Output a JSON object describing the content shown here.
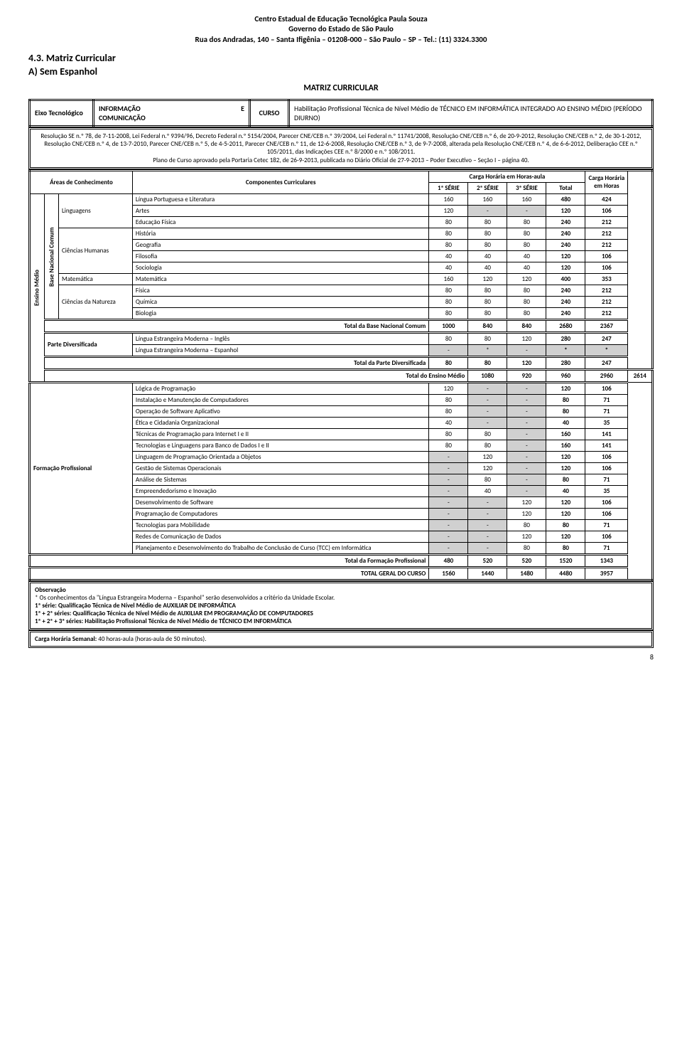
{
  "header": {
    "line1": "Centro Estadual de Educação Tecnológica Paula Souza",
    "line2": "Governo do Estado de São Paulo",
    "line3": "Rua dos Andradas, 140 – Santa Ifigênia – 01208-000 – São Paulo – SP – Tel.: (11) 3324.3300"
  },
  "sec_num": "4.3.  Matriz Curricular",
  "subsec": "A) Sem Espanhol",
  "matriz_title": "MATRIZ CURRICULAR",
  "info": {
    "eixo_lbl": "Eixo Tecnológico",
    "eixo_val_pre": "INFORMAÇÃO",
    "eixo_val_mid": "E",
    "eixo_val_post": "COMUNICAÇÃO",
    "curso_lbl": "CURSO",
    "curso_val": "Habilitação Profissional Técnica de Nível Médio de TÉCNICO EM INFORMÁTICA INTEGRADO AO ENSINO MÉDIO (PERÍODO DIURNO)"
  },
  "legal": "Resolução SE n.º 78, de 7-11-2008, Lei Federal n.º 9394/96, Decreto Federal n.º 5154/2004, Parecer CNE/CEB n.º 39/2004, Lei Federal n.º 11741/2008, Resolução CNE/CEB n.º 6, de 20-9-2012, Resolução CNE/CEB n.º 2, de 30-1-2012, Resolução CNE/CEB n.º 4, de 13-7-2010, Parecer CNE/CEB n.º 5, de 4-5-2011, Parecer CNE/CEB n.º 11, de 12-6-2008, Resolução CNE/CEB n.º 3, de 9-7-2008, alterada pela Resolução CNE/CEB n.º 4, de 6-6-2012, Deliberação CEE n.º 105/2011, das Indicações CEE n.º 8/2000 e n.º 108/2011.",
  "legal2": "Plano de Curso aprovado pela Portaria Cetec 182, de 26-9-2013, publicada no Diário Oficial de 27-9-2013 – Poder Executivo – Seção I – página 40.",
  "th": {
    "areas": "Áreas de Conhecimento",
    "comp": "Componentes Curriculares",
    "carga_ha": "Carga Horária em Horas-aula",
    "carga_h": "Carga Horária em Horas",
    "s1": "1ª SÉRIE",
    "s2": "2ª SÉRIE",
    "s3": "3ª SÉRIE",
    "tot": "Total"
  },
  "rot_em": "Ensino Médio",
  "rot_bnc": "Base Nacional Comum",
  "areas": {
    "ling": "Linguagens",
    "hum": "Ciências Humanas",
    "mat": "Matemática",
    "nat": "Ciências da Natureza",
    "div": "Parte Diversificada",
    "fp": "Formação Profissional"
  },
  "rows_bnc": [
    {
      "c": "Língua Portuguesa e Literatura",
      "v": [
        "160",
        "160",
        "160",
        "480",
        "424"
      ]
    },
    {
      "c": "Artes",
      "v": [
        "120",
        "-",
        "-",
        "120",
        "106"
      ],
      "g": [
        1,
        2
      ]
    },
    {
      "c": "Educação Física",
      "v": [
        "80",
        "80",
        "80",
        "240",
        "212"
      ]
    },
    {
      "c": "História",
      "v": [
        "80",
        "80",
        "80",
        "240",
        "212"
      ]
    },
    {
      "c": "Geografia",
      "v": [
        "80",
        "80",
        "80",
        "240",
        "212"
      ]
    },
    {
      "c": "Filosofia",
      "v": [
        "40",
        "40",
        "40",
        "120",
        "106"
      ]
    },
    {
      "c": "Sociologia",
      "v": [
        "40",
        "40",
        "40",
        "120",
        "106"
      ]
    },
    {
      "c": "Matemática",
      "v": [
        "160",
        "120",
        "120",
        "400",
        "353"
      ]
    },
    {
      "c": "Física",
      "v": [
        "80",
        "80",
        "80",
        "240",
        "212"
      ]
    },
    {
      "c": "Química",
      "v": [
        "80",
        "80",
        "80",
        "240",
        "212"
      ]
    },
    {
      "c": "Biologia",
      "v": [
        "80",
        "80",
        "80",
        "240",
        "212"
      ]
    }
  ],
  "tot_bnc": {
    "lbl": "Total da Base Nacional Comum",
    "v": [
      "1000",
      "840",
      "840",
      "2680",
      "2367"
    ]
  },
  "rows_div": [
    {
      "c": "Língua Estrangeira Moderna – Inglês",
      "v": [
        "80",
        "80",
        "120",
        "280",
        "247"
      ]
    },
    {
      "c": "Língua Estrangeira Moderna – Espanhol",
      "v": [
        "-",
        "*",
        "-",
        "*",
        "*"
      ],
      "g": [
        0,
        1,
        2,
        3,
        4
      ]
    }
  ],
  "tot_div": {
    "lbl": "Total da Parte Diversificada",
    "v": [
      "80",
      "80",
      "120",
      "280",
      "247"
    ]
  },
  "tot_em": {
    "lbl": "Total do Ensino Médio",
    "v": [
      "1080",
      "920",
      "960",
      "2960",
      "2614"
    ]
  },
  "rows_fp": [
    {
      "c": "Lógica de Programação",
      "v": [
        "120",
        "-",
        "-",
        "120",
        "106"
      ],
      "g": [
        1,
        2
      ]
    },
    {
      "c": "Instalação e Manutenção de Computadores",
      "v": [
        "80",
        "-",
        "-",
        "80",
        "71"
      ],
      "g": [
        1,
        2
      ]
    },
    {
      "c": "Operação de Software Aplicativo",
      "v": [
        "80",
        "-",
        "-",
        "80",
        "71"
      ],
      "g": [
        1,
        2
      ]
    },
    {
      "c": "Ética e Cidadania Organizacional",
      "v": [
        "40",
        "-",
        "-",
        "40",
        "35"
      ],
      "g": [
        1,
        2
      ]
    },
    {
      "c": "Técnicas de Programação para Internet I e II",
      "v": [
        "80",
        "80",
        "-",
        "160",
        "141"
      ],
      "g": [
        2
      ]
    },
    {
      "c": "Tecnologias e Linguagens para Banco de Dados I e II",
      "v": [
        "80",
        "80",
        "-",
        "160",
        "141"
      ],
      "g": [
        2
      ]
    },
    {
      "c": "Linguagem de Programação Orientada a Objetos",
      "v": [
        "-",
        "120",
        "-",
        "120",
        "106"
      ],
      "g": [
        0,
        2
      ]
    },
    {
      "c": "Gestão de Sistemas Operacionais",
      "v": [
        "-",
        "120",
        "-",
        "120",
        "106"
      ],
      "g": [
        0,
        2
      ]
    },
    {
      "c": "Análise de Sistemas",
      "v": [
        "-",
        "80",
        "-",
        "80",
        "71"
      ],
      "g": [
        0,
        2
      ]
    },
    {
      "c": "Empreendedorismo e Inovação",
      "v": [
        "-",
        "40",
        "-",
        "40",
        "35"
      ],
      "g": [
        0,
        2
      ]
    },
    {
      "c": "Desenvolvimento de Software",
      "v": [
        "-",
        "-",
        "120",
        "120",
        "106"
      ],
      "g": [
        0,
        1
      ]
    },
    {
      "c": "Programação de Computadores",
      "v": [
        "-",
        "-",
        "120",
        "120",
        "106"
      ],
      "g": [
        0,
        1
      ]
    },
    {
      "c": "Tecnologias para Mobilidade",
      "v": [
        "-",
        "-",
        "80",
        "80",
        "71"
      ],
      "g": [
        0,
        1
      ]
    },
    {
      "c": "Redes de Comunicação de Dados",
      "v": [
        "-",
        "-",
        "120",
        "120",
        "106"
      ],
      "g": [
        0,
        1
      ]
    },
    {
      "c": "Planejamento e Desenvolvimento do Trabalho de Conclusão de Curso (TCC) em Informática",
      "v": [
        "-",
        "-",
        "80",
        "80",
        "71"
      ],
      "g": [
        0,
        1
      ]
    }
  ],
  "tot_fp": {
    "lbl": "Total da Formação Profissional",
    "v": [
      "480",
      "520",
      "520",
      "1520",
      "1343"
    ]
  },
  "tot_geral": {
    "lbl": "TOTAL GERAL DO CURSO",
    "v": [
      "1560",
      "1440",
      "1480",
      "4480",
      "3957"
    ]
  },
  "obs": {
    "title": "Observação",
    "note": "* Os conhecimentos da \"Língua Estrangeira Moderna – Espanhol\" serão desenvolvidos a critério da Unidade Escolar.",
    "q1": "1ª série: Qualificação Técnica de Nível Médio de AUXILIAR DE INFORMÁTICA",
    "q2": "1ª + 2ª séries: Qualificação Técnica de Nível Médio de AUXILIAR EM PROGRAMAÇÃO DE COMPUTADORES",
    "q3": "1ª + 2ª + 3ª séries: Habilitação Profissional Técnica de Nível Médio de TÉCNICO EM INFORMÁTICA"
  },
  "carga_sem": "Carga Horária Semanal: 40 horas-aula (horas-aula de 50 minutos).",
  "page": "8",
  "colors": {
    "gray": "#d0d0d0"
  }
}
